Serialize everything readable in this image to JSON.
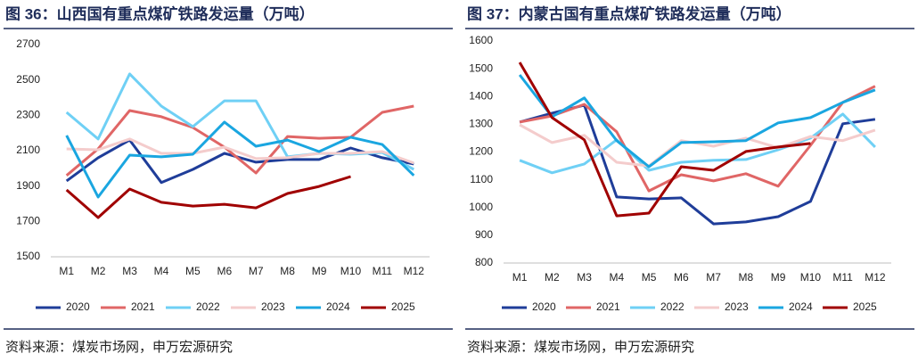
{
  "chart_data": [
    {
      "type": "line",
      "title": "图 36：山西国有重点煤矿铁路发运量（万吨）",
      "source": "资料来源：煤炭市场网，申万宏源研究",
      "categories": [
        "M1",
        "M2",
        "M3",
        "M4",
        "M5",
        "M6",
        "M7",
        "M8",
        "M9",
        "M10",
        "M11",
        "M12"
      ],
      "ylim": [
        1500,
        2700
      ],
      "yticks": [
        1500,
        1700,
        1900,
        2100,
        2300,
        2500,
        2700
      ],
      "series": [
        {
          "name": "2020",
          "color": "#1f3d99",
          "values": [
            1929,
            2060,
            2160,
            1920,
            1994,
            2085,
            2035,
            2050,
            2050,
            2115,
            2060,
            2025
          ]
        },
        {
          "name": "2021",
          "color": "#e06666",
          "values": [
            1960,
            2110,
            2327,
            2292,
            2231,
            2120,
            1974,
            2180,
            2170,
            2176,
            2317,
            2352
          ]
        },
        {
          "name": "2022",
          "color": "#6fd0f5",
          "values": [
            2317,
            2166,
            2534,
            2352,
            2236,
            2382,
            2382,
            2065,
            2085,
            2080,
            2090,
            1994
          ]
        },
        {
          "name": "2023",
          "color": "#f4cccc",
          "values": [
            2110,
            2105,
            2166,
            2085,
            2085,
            2120,
            2055,
            2060,
            2085,
            2085,
            2095,
            2030
          ]
        },
        {
          "name": "2024",
          "color": "#1aa6e0",
          "values": [
            2186,
            1838,
            2075,
            2065,
            2080,
            2262,
            2125,
            2160,
            2095,
            2176,
            2135,
            1960
          ]
        },
        {
          "name": "2025",
          "color": "#a00000",
          "values": [
            1878,
            1722,
            1883,
            1808,
            1787,
            1797,
            1777,
            1858,
            1898,
            1954,
            null,
            null
          ]
        }
      ]
    },
    {
      "type": "line",
      "title": "图 37：内蒙古国有重点煤矿铁路发运量（万吨）",
      "source": "资料来源：煤炭市场网，申万宏源研究",
      "categories": [
        "M1",
        "M2",
        "M3",
        "M4",
        "M5",
        "M6",
        "M7",
        "M8",
        "M9",
        "M10",
        "M11",
        "M12"
      ],
      "ylim": [
        800,
        1600
      ],
      "yticks": [
        800,
        900,
        1000,
        1100,
        1200,
        1300,
        1400,
        1500,
        1600
      ],
      "series": [
        {
          "name": "2020",
          "color": "#1f3d99",
          "values": [
            1308,
            1340,
            1369,
            1038,
            1031,
            1035,
            941,
            948,
            967,
            1022,
            1302,
            1318
          ]
        },
        {
          "name": "2021",
          "color": "#e06666",
          "values": [
            1308,
            1330,
            1372,
            1273,
            1060,
            1118,
            1096,
            1122,
            1077,
            1224,
            1379,
            1437
          ]
        },
        {
          "name": "2022",
          "color": "#6fd0f5",
          "values": [
            1170,
            1125,
            1157,
            1244,
            1134,
            1163,
            1170,
            1173,
            1208,
            1250,
            1337,
            1218
          ]
        },
        {
          "name": "2023",
          "color": "#f4cccc",
          "values": [
            1298,
            1234,
            1260,
            1163,
            1150,
            1241,
            1221,
            1250,
            1215,
            1256,
            1241,
            1279
          ]
        },
        {
          "name": "2024",
          "color": "#1aa6e0",
          "values": [
            1478,
            1327,
            1395,
            1241,
            1147,
            1234,
            1237,
            1241,
            1305,
            1324,
            1379,
            1424
          ]
        },
        {
          "name": "2025",
          "color": "#a00000",
          "values": [
            1523,
            1324,
            1244,
            970,
            980,
            1147,
            1134,
            1202,
            1218,
            1231,
            null,
            null
          ]
        }
      ]
    }
  ]
}
